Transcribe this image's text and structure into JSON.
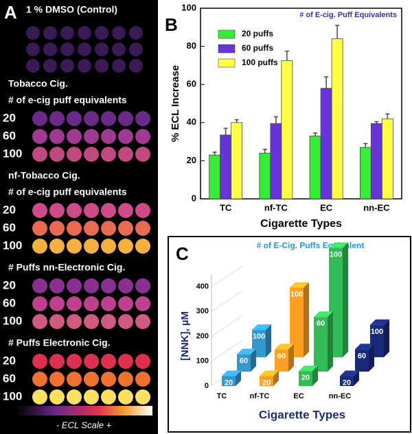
{
  "panel_a": {
    "label": "A",
    "title": "1 % DMSO (Control)",
    "control_color": "#3a1a55",
    "sections": [
      {
        "titles": [
          "Tobacco Cig.",
          "# of e-cig puff equivalents"
        ],
        "rows": [
          {
            "label": "20",
            "color": "#6a2a8a"
          },
          {
            "label": "60",
            "color": "#a03a90"
          },
          {
            "label": "100",
            "color": "#c04a80"
          }
        ]
      },
      {
        "titles": [
          "nf-Tobacco Cig.",
          "# of e-cig puff equivalents"
        ],
        "rows": [
          {
            "label": "20",
            "color": "#d04a8a"
          },
          {
            "label": "60",
            "color": "#e86a50"
          },
          {
            "label": "100",
            "color": "#f5b040"
          }
        ]
      },
      {
        "titles": [
          "# Puffs nn-Electronic Cig."
        ],
        "rows": [
          {
            "label": "20",
            "color": "#8a3090"
          },
          {
            "label": "60",
            "color": "#c04090"
          },
          {
            "label": "100",
            "color": "#d05a80"
          }
        ]
      },
      {
        "titles": [
          "# Puffs Electronic Cig."
        ],
        "rows": [
          {
            "label": "20",
            "color": "#e03050"
          },
          {
            "label": "60",
            "color": "#f07030"
          },
          {
            "label": "100",
            "color": "#ffe060"
          }
        ]
      }
    ],
    "scale_label": "- ECL Scale +"
  },
  "chart_data": [
    {
      "type": "bar",
      "label": "B",
      "annotation": "# of E-cig. Puff Equivalents",
      "ylabel": "% ECL Increase",
      "xlabel": "Cigarette Types",
      "categories": [
        "TC",
        "nf-TC",
        "EC",
        "nn-EC"
      ],
      "series": [
        {
          "name": "20 puffs",
          "color": "#33ee33",
          "values": [
            23,
            24,
            33,
            27
          ],
          "errors": [
            1.5,
            2,
            1.5,
            2
          ]
        },
        {
          "name": "60 puffs",
          "color": "#6633dd",
          "values": [
            33.5,
            39.5,
            58,
            39.5
          ],
          "errors": [
            3.5,
            3.5,
            6,
            1
          ]
        },
        {
          "name": "100 puffs",
          "color": "#ffff44",
          "values": [
            40,
            72.5,
            84,
            42
          ],
          "errors": [
            1.5,
            5,
            7,
            2.5
          ]
        }
      ],
      "ylim": [
        0,
        100
      ],
      "yticks": [
        0,
        20,
        40,
        60,
        80,
        100
      ],
      "legend": "upper-left"
    },
    {
      "type": "bar3d",
      "label": "C",
      "annotation": "# of E-Cig. Puffs Equivalent",
      "ylabel": "[NNK], µM",
      "xlabel": "Cigarette Types",
      "categories": [
        "TC",
        "nf-TC",
        "EC",
        "nn-EC"
      ],
      "colors": [
        "#3399cc",
        "#ffa020",
        "#33bb55",
        "#1a2a7a"
      ],
      "series": [
        {
          "name": "20",
          "values": [
            40,
            40,
            60,
            40
          ]
        },
        {
          "name": "60",
          "values": [
            70,
            90,
            220,
            90
          ]
        },
        {
          "name": "100",
          "values": [
            110,
            280,
            440,
            130
          ]
        }
      ],
      "ylim": [
        0,
        450
      ],
      "yticks": [
        0,
        100,
        200,
        300,
        400
      ]
    }
  ]
}
